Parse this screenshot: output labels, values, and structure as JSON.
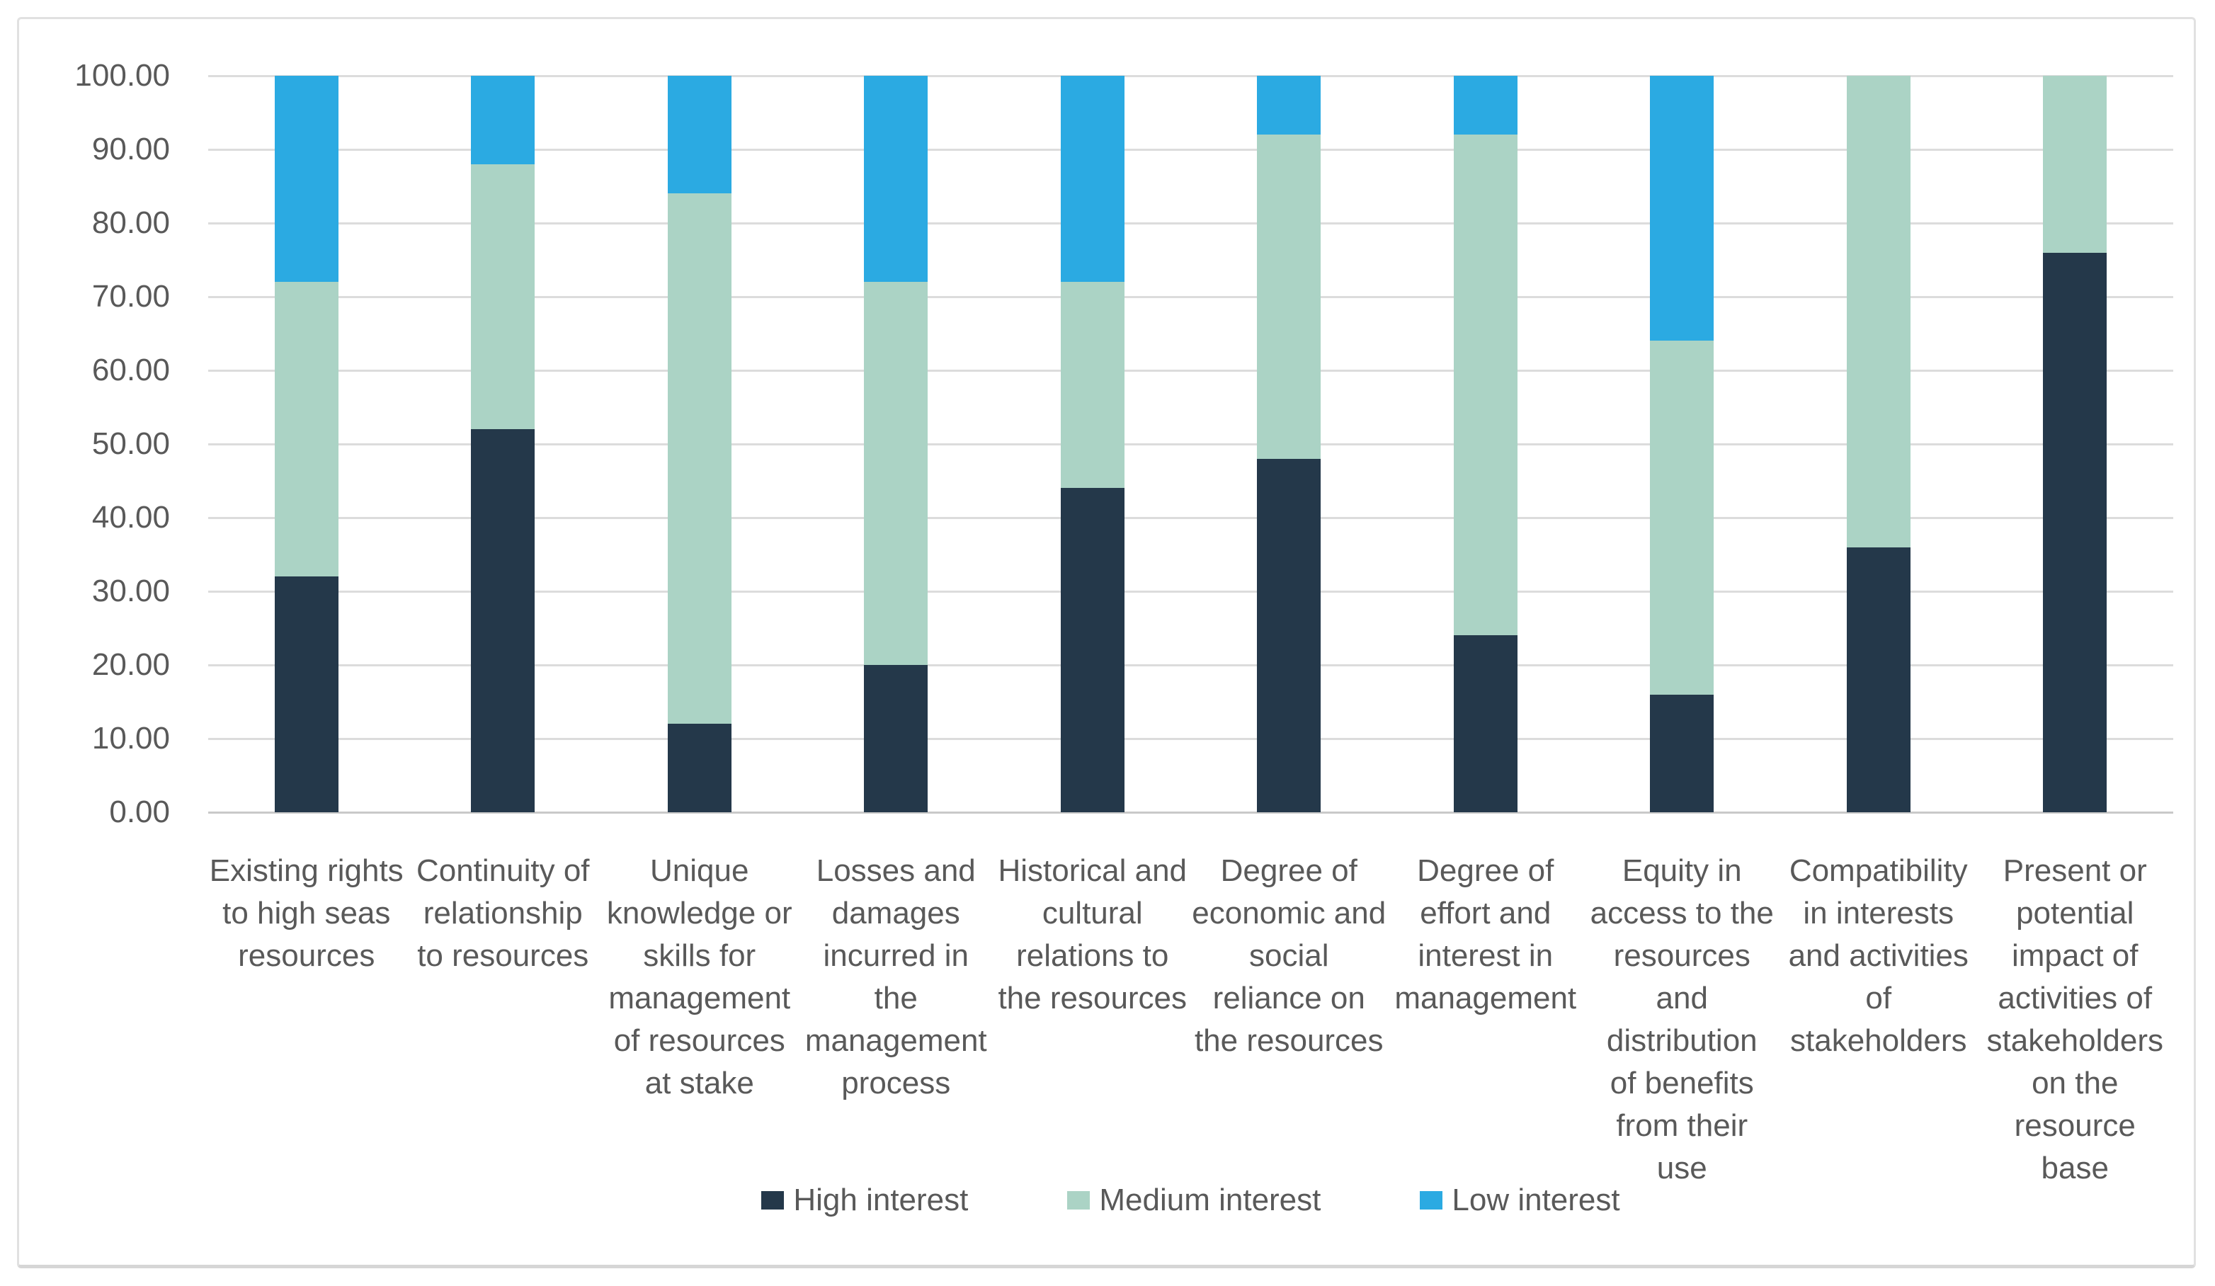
{
  "chart_data": {
    "type": "bar",
    "stacked": true,
    "percent_stacked": true,
    "title": "",
    "xlabel": "",
    "ylabel": "",
    "ylim": [
      0,
      100
    ],
    "ytick_step": 10,
    "ytick_labels": [
      "100.00",
      "90.00",
      "80.00",
      "70.00",
      "60.00",
      "50.00",
      "40.00",
      "30.00",
      "20.00",
      "10.00",
      "0.00"
    ],
    "grid": true,
    "legend_position": "bottom",
    "categories": [
      "Existing rights\nto high seas\nresources",
      "Continuity of\nrelationship\nto resources",
      "Unique\nknowledge or\nskills for\nmanagement\nof resources\nat stake",
      "Losses and\ndamages\nincurred in\nthe\nmanagement\nprocess",
      "Historical and\ncultural\nrelations to\nthe resources",
      "Degree of\neconomic and\nsocial\nreliance on\nthe resources",
      "Degree of\neffort and\ninterest in\nmanagement",
      "Equity in\naccess to the\nresources and\ndistribution\nof benefits\nfrom their\nuse",
      "Compatibility\nin interests\nand activities\nof\nstakeholders",
      "Present or\npotential\nimpact of\nactivities of\nstakeholders\non the\nresource base"
    ],
    "series": [
      {
        "name": "High interest",
        "color": "#24384A",
        "values": [
          32,
          52,
          12,
          20,
          44,
          48,
          24,
          16,
          36,
          76
        ]
      },
      {
        "name": "Medium interest",
        "color": "#ABD3C5",
        "values": [
          40,
          36,
          72,
          52,
          28,
          44,
          68,
          48,
          64,
          24
        ]
      },
      {
        "name": "Low interest",
        "color": "#2BAAE2",
        "values": [
          28,
          12,
          16,
          28,
          28,
          8,
          8,
          36,
          0,
          0
        ]
      }
    ],
    "palette": {
      "background": "#FFFFFF",
      "frame_border": "#E1E1E1",
      "gridline": "#DCDCDC",
      "zero_line": "#C9C9C9",
      "tick_text": "#595959",
      "legend_text": "#595959"
    }
  }
}
